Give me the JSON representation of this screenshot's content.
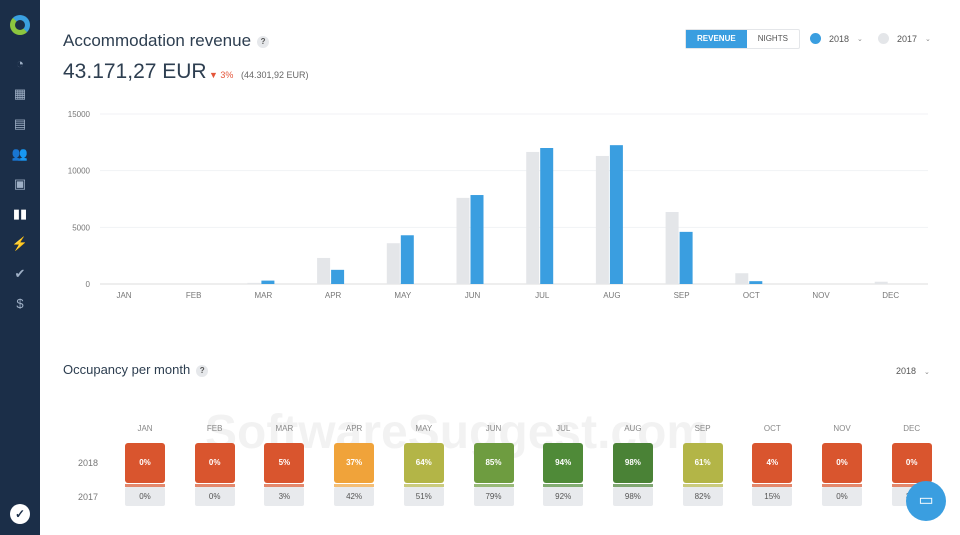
{
  "sidebar": {
    "items": [
      "dashboard",
      "calendar",
      "reservations",
      "guests",
      "reports",
      "statistics",
      "integrations",
      "tasks",
      "finance"
    ],
    "active": "statistics"
  },
  "header": {
    "title": "Accommodation revenue",
    "help": "?",
    "total": "43.171,27 EUR",
    "delta": "▼ 3%",
    "previous": "(44.301,92 EUR)"
  },
  "toggle": {
    "revenue": "REVENUE",
    "nights": "NIGHTS"
  },
  "legend": [
    {
      "label": "2018",
      "color": "#3a9ee0"
    },
    {
      "label": "2017",
      "color": "#e4e6e9"
    }
  ],
  "chart_data": {
    "type": "bar",
    "categories": [
      "JAN",
      "FEB",
      "MAR",
      "APR",
      "MAY",
      "JUN",
      "JUL",
      "AUG",
      "SEP",
      "OCT",
      "NOV",
      "DEC"
    ],
    "series": [
      {
        "name": "2017",
        "color": "#e4e6e9",
        "values": [
          0,
          0,
          100,
          2300,
          3600,
          7600,
          11650,
          11300,
          6350,
          950,
          0,
          200
        ]
      },
      {
        "name": "2018",
        "color": "#3a9ee0",
        "values": [
          0,
          0,
          300,
          1250,
          4300,
          7850,
          12000,
          12250,
          4600,
          250,
          0,
          0
        ]
      }
    ],
    "yticks": [
      "0",
      "5000",
      "10000",
      "15000"
    ],
    "ylim": [
      0,
      15000
    ],
    "grid": true
  },
  "occupancy": {
    "title": "Occupancy per month",
    "help": "?",
    "year": "2018",
    "row_labels": [
      "2018",
      "2017"
    ],
    "months": [
      {
        "m": "JAN",
        "y2018": "0%",
        "y2017": "0%",
        "color": "#d9552e"
      },
      {
        "m": "FEB",
        "y2018": "0%",
        "y2017": "0%",
        "color": "#d9552e"
      },
      {
        "m": "MAR",
        "y2018": "5%",
        "y2017": "3%",
        "color": "#d9552e"
      },
      {
        "m": "APR",
        "y2018": "37%",
        "y2017": "42%",
        "color": "#f0a33a"
      },
      {
        "m": "MAY",
        "y2018": "64%",
        "y2017": "51%",
        "color": "#b3b547"
      },
      {
        "m": "JUN",
        "y2018": "85%",
        "y2017": "79%",
        "color": "#6e9c40"
      },
      {
        "m": "JUL",
        "y2018": "94%",
        "y2017": "92%",
        "color": "#4f8a38"
      },
      {
        "m": "AUG",
        "y2018": "98%",
        "y2017": "98%",
        "color": "#4a8236"
      },
      {
        "m": "SEP",
        "y2018": "61%",
        "y2017": "82%",
        "color": "#b3b547"
      },
      {
        "m": "OCT",
        "y2018": "4%",
        "y2017": "15%",
        "color": "#d9552e"
      },
      {
        "m": "NOV",
        "y2018": "0%",
        "y2017": "0%",
        "color": "#d9552e"
      },
      {
        "m": "DEC",
        "y2018": "0%",
        "y2017": "3%",
        "color": "#d9552e"
      }
    ]
  },
  "watermark": "SoftwareSuggest.com"
}
